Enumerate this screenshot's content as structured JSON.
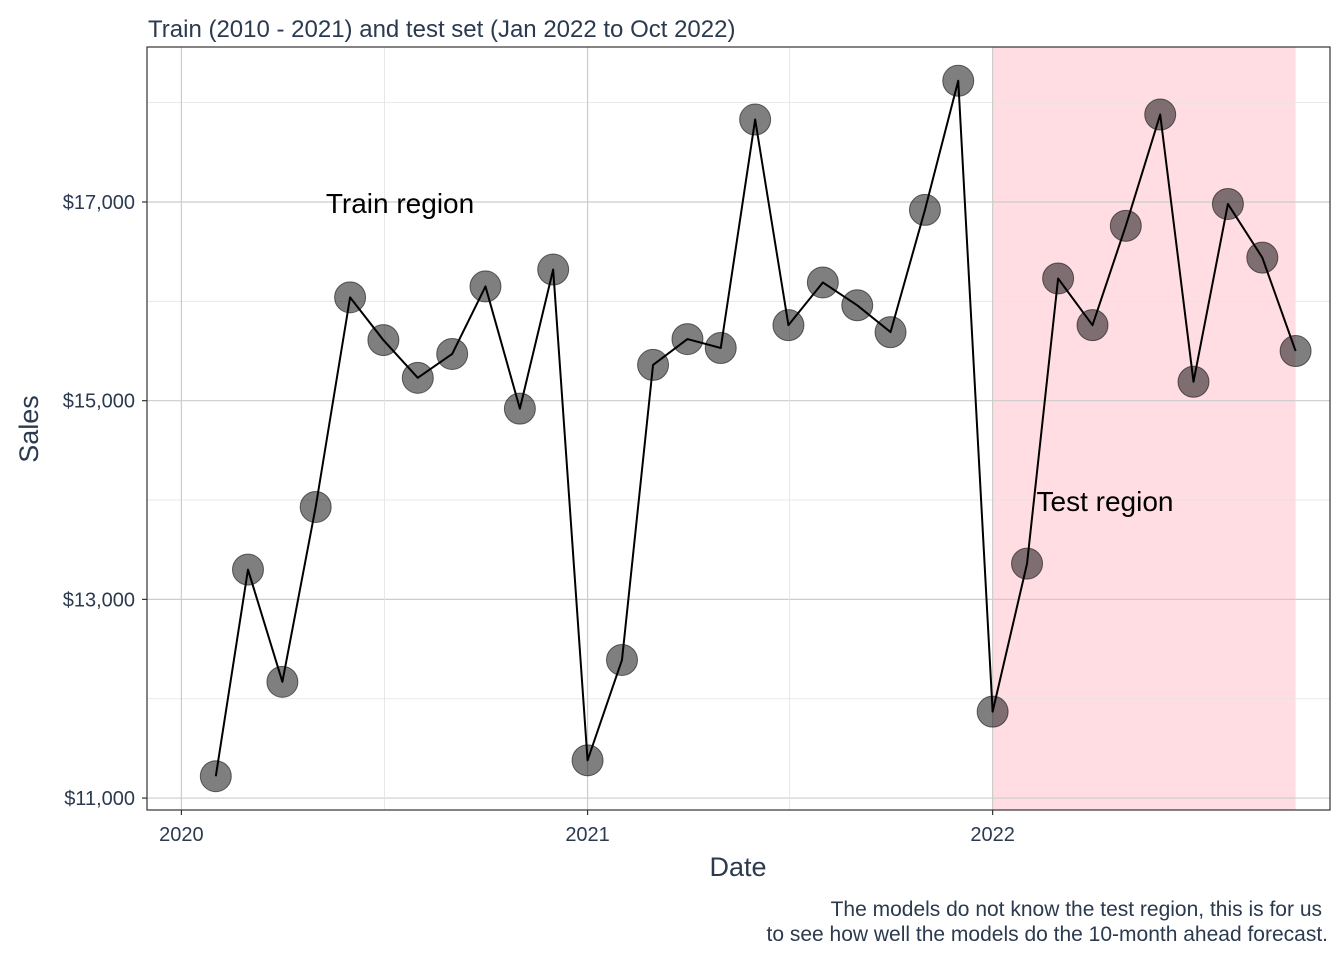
{
  "chart_data": {
    "type": "line",
    "title": "Train (2010 - 2021) and test set (Jan 2022 to Oct 2022)",
    "xlabel": "Date",
    "ylabel": "Sales",
    "x_ticks": [
      "2020",
      "2021",
      "2022"
    ],
    "y_ticks": [
      "$11,000",
      "$13,000",
      "$15,000",
      "$17,000"
    ],
    "xlim": [
      "2019-12-01",
      "2022-11-01"
    ],
    "ylim": [
      10880,
      18560
    ],
    "grid": true,
    "regions": [
      {
        "label": "Train region"
      },
      {
        "label": "Test region",
        "start": "2022-01-01",
        "end": "2022-10-01",
        "color": "#ffdde3"
      }
    ],
    "caption": [
      "The models do not know the test region, this is for us",
      "to see how well the models do the 10-month ahead forecast."
    ],
    "series": [
      {
        "x": [
          "2020-02-01",
          "2020-03-01",
          "2020-04-01",
          "2020-05-01",
          "2020-06-01",
          "2020-07-01",
          "2020-08-01",
          "2020-09-01",
          "2020-10-01",
          "2020-11-01",
          "2020-12-01",
          "2021-01-01",
          "2021-02-01",
          "2021-03-01",
          "2021-04-01",
          "2021-05-01",
          "2021-06-01",
          "2021-07-01",
          "2021-08-01",
          "2021-09-01",
          "2021-10-01",
          "2021-11-01",
          "2021-12-01",
          "2022-01-01",
          "2022-02-01",
          "2022-03-01",
          "2022-04-01",
          "2022-05-01",
          "2022-06-01",
          "2022-07-01",
          "2022-08-01",
          "2022-09-01",
          "2022-10-01"
        ],
        "values": [
          11220,
          13300,
          12170,
          13930,
          16040,
          15610,
          15230,
          15470,
          16150,
          14920,
          16320,
          11380,
          12390,
          15360,
          15620,
          15530,
          17830,
          15760,
          16190,
          15960,
          15690,
          16920,
          18220,
          11870,
          13360,
          16230,
          15760,
          16760,
          17880,
          15190,
          16980,
          16440,
          15500
        ]
      }
    ]
  }
}
